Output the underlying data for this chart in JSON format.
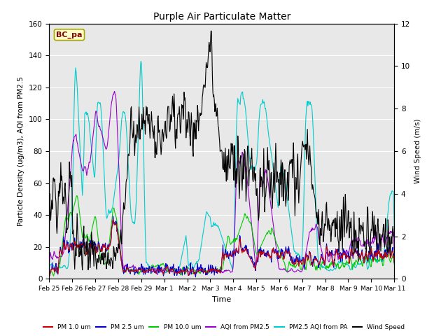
{
  "title": "Purple Air Particulate Matter",
  "xlabel": "Time",
  "ylabel_left": "Particle Density (ug/m3), AQI from PM2.5",
  "ylabel_right": "Wind Speed (m/s)",
  "ylim_left": [
    0,
    160
  ],
  "ylim_right": [
    0,
    12
  ],
  "station_label": "BC_pa",
  "x_tick_labels": [
    "Feb 25",
    "Feb 26",
    "Feb 27",
    "Feb 28",
    "Feb 29",
    "Mar 1",
    "Mar 2",
    "Mar 3",
    "Mar 4",
    "Mar 5",
    "Mar 6",
    "Mar 7",
    "Mar 8",
    "Mar 9",
    "Mar 10",
    "Mar 11"
  ],
  "bg_color": "#e8e8e8",
  "colors": {
    "pm1": "#cc0000",
    "pm25": "#0000cc",
    "pm10": "#00cc00",
    "aqi": "#9900cc",
    "pm25_aqi_pa": "#00cccc",
    "wind": "#000000"
  },
  "legend": [
    {
      "label": "PM 1.0 um",
      "color": "#cc0000"
    },
    {
      "label": "PM 2.5 um",
      "color": "#0000cc"
    },
    {
      "label": "PM 10.0 um",
      "color": "#00cc00"
    },
    {
      "label": "AQI from PM2.5",
      "color": "#9900cc"
    },
    {
      "label": "PM2.5 AQI from PA",
      "color": "#00cccc"
    },
    {
      "label": "Wind Speed",
      "color": "#000000"
    }
  ]
}
